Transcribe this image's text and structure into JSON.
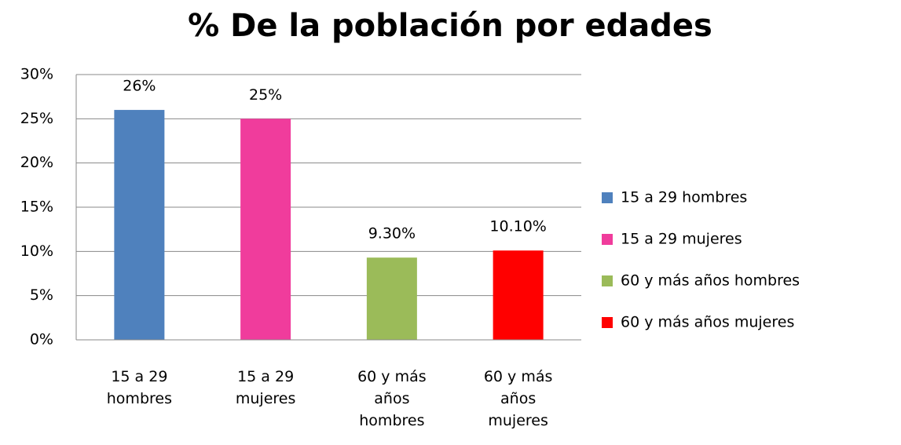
{
  "chart_data": {
    "type": "bar",
    "title": "% De  la población por  edades",
    "categories": [
      "15 a 29 hombres",
      "15 a 29 mujeres",
      "60 y más años hombres",
      "60 y más años mujeres"
    ],
    "values": [
      26,
      25,
      9.3,
      10.1
    ],
    "value_labels": [
      "26%",
      "25%",
      "9.30%",
      "10.10%"
    ],
    "colors": [
      "#4f81bd",
      "#f03c9c",
      "#9bbb59",
      "#ff0000"
    ],
    "ylim": [
      0,
      30
    ],
    "yticks": [
      {
        "value": 0,
        "label": "0%"
      },
      {
        "value": 5,
        "label": "5%"
      },
      {
        "value": 10,
        "label": "10%"
      },
      {
        "value": 15,
        "label": "15%"
      },
      {
        "value": 20,
        "label": "20%"
      },
      {
        "value": 25,
        "label": "25%"
      },
      {
        "value": 30,
        "label": "30%"
      }
    ],
    "grid": true,
    "legend": "right"
  }
}
